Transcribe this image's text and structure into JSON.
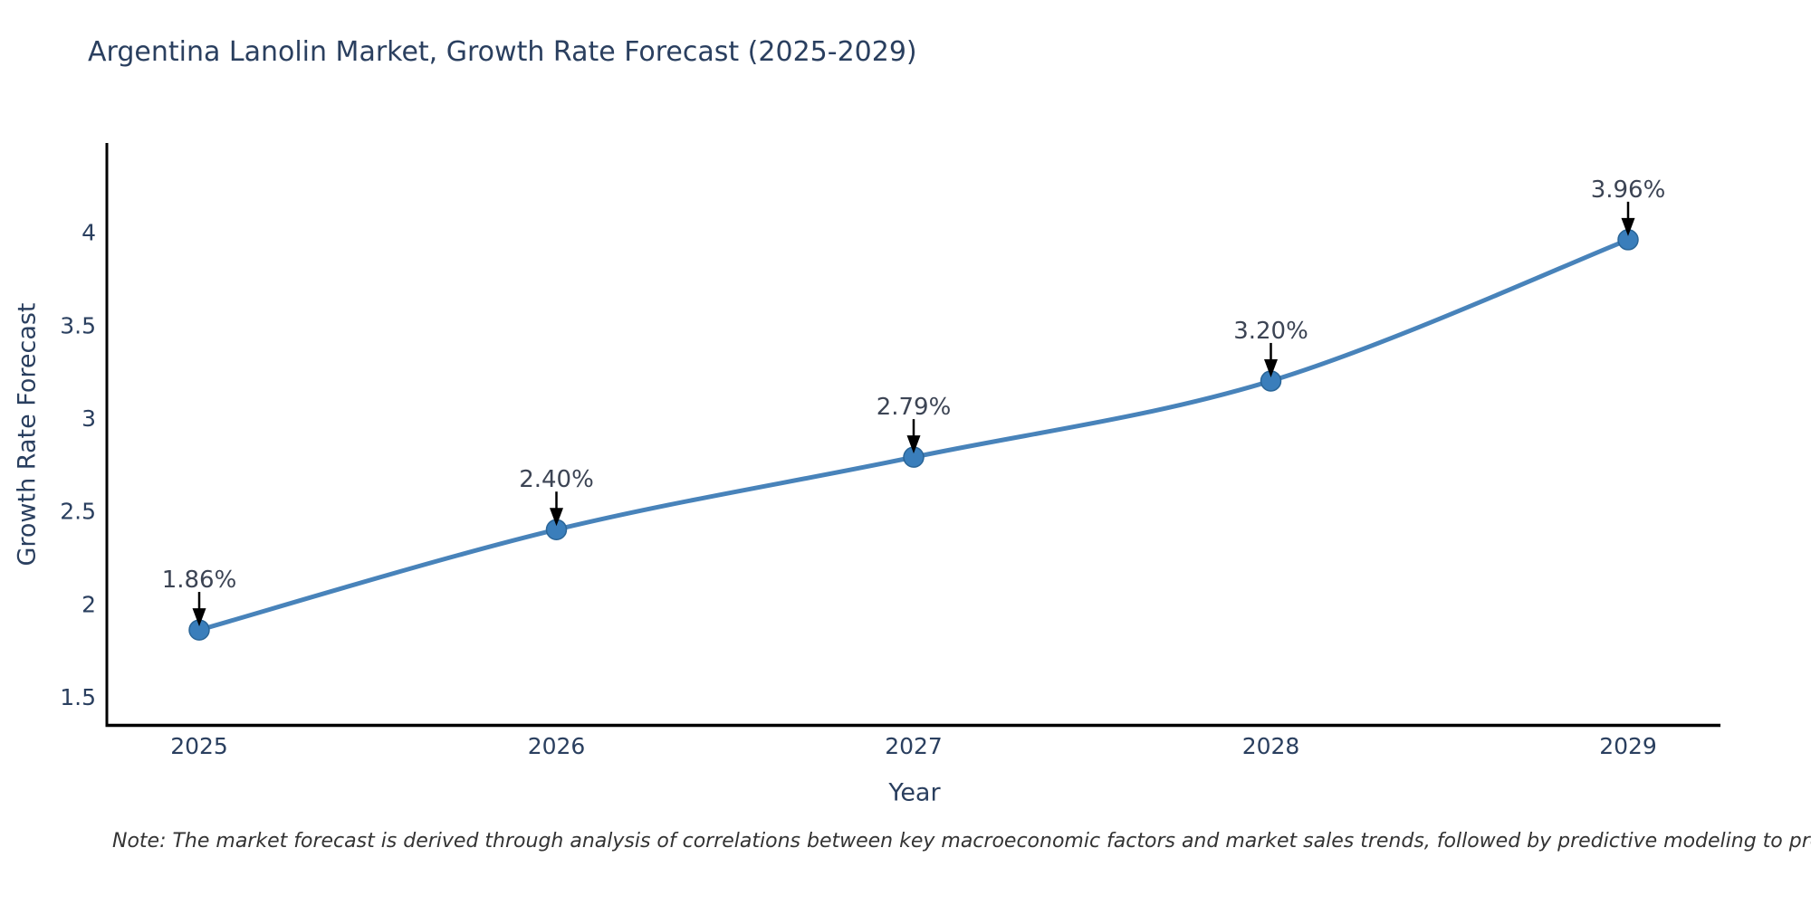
{
  "chart": {
    "note": "Note: The market forecast is derived through analysis of correlations between key macroeconomic factors and market sales trends, followed by predictive modeling to project future sales",
    "colors": {
      "line": "#4883ba",
      "marker": "#3a7ebb",
      "marker_edge": "#2a6597",
      "text": "#2a3f5f",
      "annotation_text": "#3c4454",
      "arrow": "#000000",
      "axis": "#000000",
      "note_text": "#333333",
      "background": "#ffffff"
    }
  },
  "chart_data": {
    "type": "line",
    "title": "Argentina Lanolin Market, Growth Rate Forecast (2025-2029)",
    "xlabel": "Year",
    "ylabel": "Growth Rate Forecast",
    "x": [
      2025,
      2026,
      2027,
      2028,
      2029
    ],
    "series": [
      {
        "name": "Growth Rate Forecast",
        "values": [
          1.86,
          2.4,
          2.79,
          3.2,
          3.96
        ]
      }
    ],
    "point_labels": [
      "1.86%",
      "2.40%",
      "2.79%",
      "3.20%",
      "3.96%"
    ],
    "yticks": [
      1.5,
      2,
      2.5,
      3,
      3.5,
      4
    ],
    "ylim": [
      1.35,
      4.45
    ],
    "xlim": [
      2024.74,
      2029.26
    ],
    "grid": false,
    "legend": false,
    "line_shape": "spline",
    "markers": true,
    "annotation_style": "value labels with downward black arrows above each point"
  }
}
